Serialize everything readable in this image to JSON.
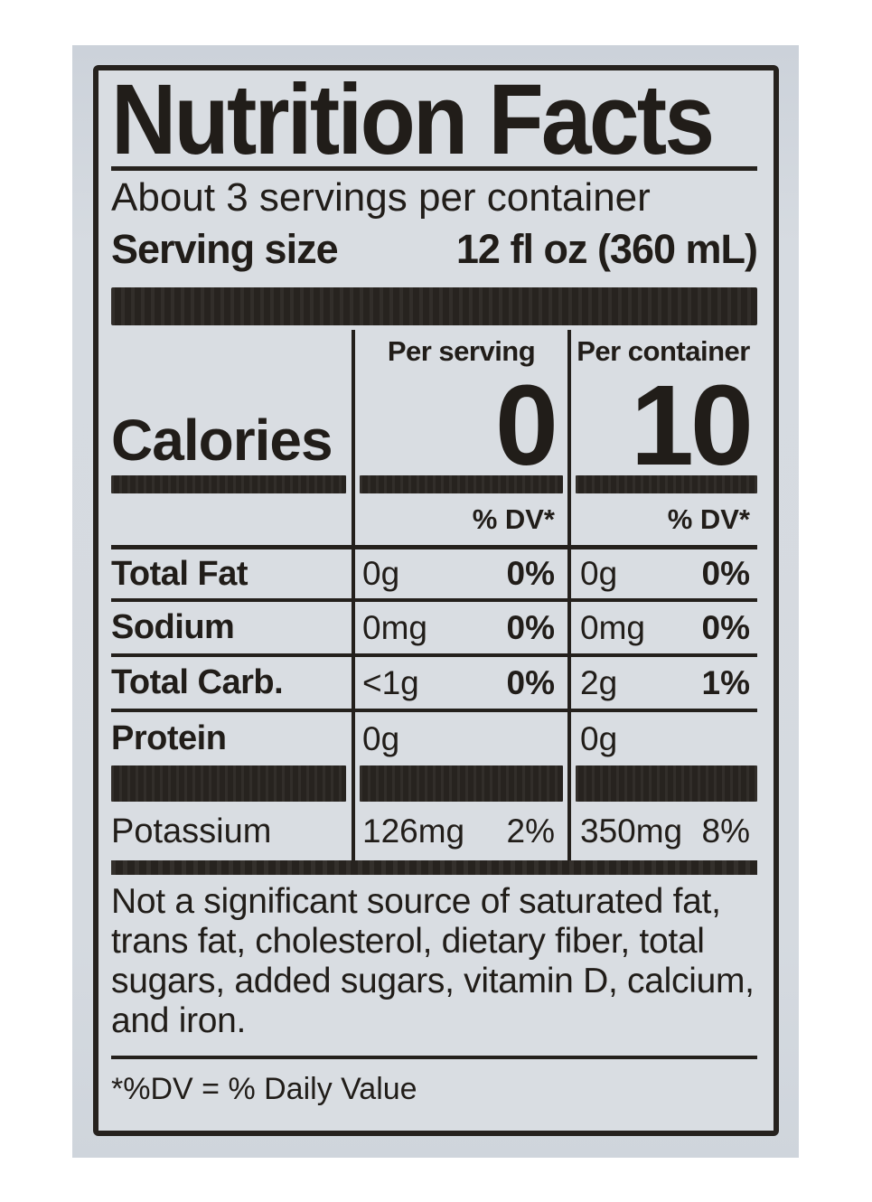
{
  "label": {
    "title": "Nutrition Facts",
    "servings_per_container": "About 3 servings per container",
    "serving_size": {
      "label": "Serving size",
      "value": "12 fl oz (360 mL)"
    },
    "column_headers": {
      "per_serving": "Per serving",
      "per_container": "Per container"
    },
    "calories": {
      "label": "Calories",
      "per_serving": "0",
      "per_container": "10"
    },
    "dv_header": {
      "per_serving": "% DV*",
      "per_container": "% DV*"
    },
    "nutrients": [
      {
        "name": "Total Fat",
        "serving_amount": "0g",
        "serving_dv": "0%",
        "container_amount": "0g",
        "container_dv": "0%"
      },
      {
        "name": "Sodium",
        "serving_amount": "0mg",
        "serving_dv": "0%",
        "container_amount": "0mg",
        "container_dv": "0%"
      },
      {
        "name": "Total Carb.",
        "serving_amount": "<1g",
        "serving_dv": "0%",
        "container_amount": "2g",
        "container_dv": "1%"
      },
      {
        "name": "Protein",
        "serving_amount": "0g",
        "serving_dv": "",
        "container_amount": "0g",
        "container_dv": ""
      }
    ],
    "potassium": {
      "name": "Potassium",
      "serving_amount": "126mg",
      "serving_dv": "2%",
      "container_amount": "350mg",
      "container_dv": "8%"
    },
    "footnote": "Not a significant source of saturated fat, trans fat, cholesterol, dietary fiber, total sugars, added sugars, vitamin D, calcium, and iron.",
    "dv_definition": "*%DV = % Daily Value"
  },
  "colors": {
    "ink": "#211d19",
    "bar": "#27231f",
    "label_background": "#d9dde2",
    "photo_background": "#d2d8de",
    "page_background": "#ffffff"
  }
}
